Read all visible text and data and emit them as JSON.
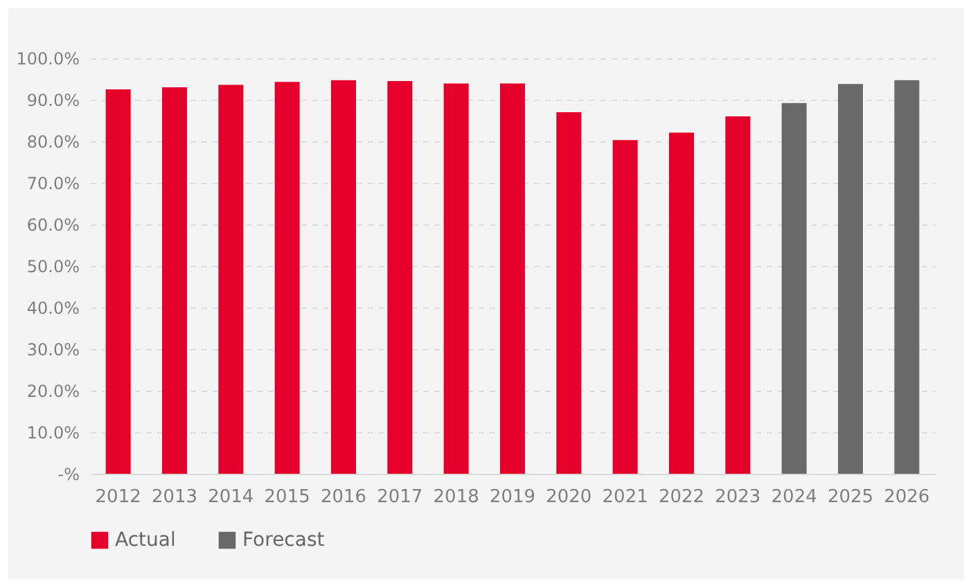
{
  "chart_data": {
    "type": "bar",
    "categories": [
      "2012",
      "2013",
      "2014",
      "2015",
      "2016",
      "2017",
      "2018",
      "2019",
      "2020",
      "2021",
      "2022",
      "2023",
      "2024",
      "2025",
      "2026"
    ],
    "series": [
      {
        "name": "Actual",
        "color": "#e4002b",
        "values": [
          92.5,
          93.0,
          93.6,
          94.3,
          94.7,
          94.5,
          93.9,
          93.9,
          87.0,
          80.3,
          82.1,
          86.0,
          null,
          null,
          null
        ]
      },
      {
        "name": "Forecast",
        "color": "#696969",
        "values": [
          null,
          null,
          null,
          null,
          null,
          null,
          null,
          null,
          null,
          null,
          null,
          null,
          89.2,
          93.8,
          94.7
        ]
      }
    ],
    "ylim": [
      0,
      100
    ],
    "yticks": [
      {
        "value": 0,
        "label": "-%"
      },
      {
        "value": 10,
        "label": "10.0%"
      },
      {
        "value": 20,
        "label": "20.0%"
      },
      {
        "value": 30,
        "label": "30.0%"
      },
      {
        "value": 40,
        "label": "40.0%"
      },
      {
        "value": 50,
        "label": "50.0%"
      },
      {
        "value": 60,
        "label": "60.0%"
      },
      {
        "value": 70,
        "label": "70.0%"
      },
      {
        "value": 80,
        "label": "80.0%"
      },
      {
        "value": 90,
        "label": "90.0%"
      },
      {
        "value": 100,
        "label": "100.0%"
      }
    ],
    "grid": "y",
    "legend": "bottom"
  }
}
